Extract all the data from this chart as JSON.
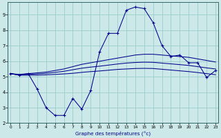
{
  "x": [
    0,
    1,
    2,
    3,
    4,
    5,
    6,
    7,
    8,
    9,
    10,
    11,
    12,
    13,
    14,
    15,
    16,
    17,
    18,
    19,
    20,
    21,
    22,
    23
  ],
  "line_actual": [
    5.2,
    5.1,
    5.2,
    4.2,
    3.0,
    2.5,
    2.5,
    3.6,
    2.9,
    4.1,
    6.6,
    7.8,
    7.8,
    9.3,
    9.5,
    9.4,
    8.5,
    7.0,
    6.3,
    6.4,
    5.9,
    5.9,
    4.95,
    5.4
  ],
  "line_avg_top": [
    5.2,
    5.15,
    5.2,
    5.25,
    5.3,
    5.4,
    5.5,
    5.65,
    5.8,
    5.9,
    6.0,
    6.1,
    6.2,
    6.3,
    6.4,
    6.45,
    6.45,
    6.4,
    6.35,
    6.3,
    6.25,
    6.15,
    6.05,
    5.95
  ],
  "line_avg_mid": [
    5.2,
    5.12,
    5.15,
    5.18,
    5.22,
    5.28,
    5.35,
    5.45,
    5.55,
    5.62,
    5.68,
    5.75,
    5.82,
    5.88,
    5.92,
    5.94,
    5.93,
    5.88,
    5.83,
    5.78,
    5.73,
    5.65,
    5.57,
    5.5
  ],
  "line_avg_bot": [
    5.2,
    5.1,
    5.1,
    5.1,
    5.12,
    5.15,
    5.18,
    5.22,
    5.28,
    5.33,
    5.37,
    5.42,
    5.47,
    5.5,
    5.53,
    5.54,
    5.53,
    5.48,
    5.43,
    5.38,
    5.33,
    5.27,
    5.2,
    5.13
  ],
  "bg_color": "#cce8e8",
  "grid_color": "#99cccc",
  "line_color": "#00008b",
  "xlabel": "Graphe des températures (°c)",
  "ylim": [
    2,
    9.8
  ],
  "xlim": [
    -0.3,
    23.3
  ],
  "yticks": [
    2,
    3,
    4,
    5,
    6,
    7,
    8,
    9
  ],
  "xticks": [
    0,
    1,
    2,
    3,
    4,
    5,
    6,
    7,
    8,
    9,
    10,
    11,
    12,
    13,
    14,
    15,
    16,
    17,
    18,
    19,
    20,
    21,
    22,
    23
  ]
}
